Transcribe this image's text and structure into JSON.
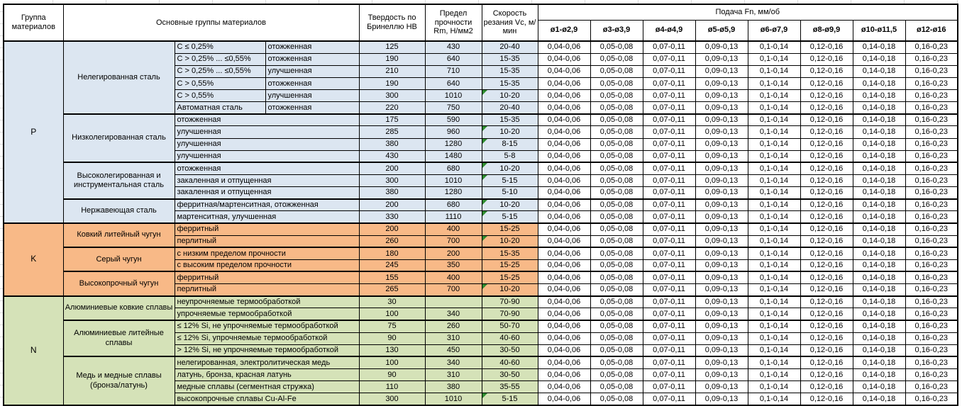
{
  "colors": {
    "group_p": "#dce6f1",
    "group_k": "#f8b987",
    "group_n": "#d5e2b8",
    "border": "#000000",
    "flag_green": "#2e8b2e"
  },
  "header": {
    "group": "Группа материалов",
    "main_groups": "Основные группы материалов",
    "hardness": "Твердость по Бринеллю HB",
    "strength": "Предел прочности Rm, Н/мм2",
    "speed": "Скорость резания Vc, м/мин",
    "feed_title": "Подача Fn, мм/об",
    "feed_cols": [
      "ø1-ø2,9",
      "ø3-ø3,9",
      "ø4-ø4,9",
      "ø5-ø5,9",
      "ø6-ø7,9",
      "ø8-ø9,9",
      "ø10-ø11,5",
      "ø12-ø16"
    ]
  },
  "table": {
    "feed_values": [
      "0,04-0,06",
      "0,05-0,08",
      "0,07-0,11",
      "0,09-0,13",
      "0,1-0,14",
      "0,12-0,16",
      "0,14-0,18",
      "0,16-0,23"
    ],
    "groups": [
      {
        "letter": "P",
        "color": "#dce6f1",
        "subgroups": [
          {
            "name": "Нелегированная сталь",
            "rows": [
              {
                "c1": "C ≤ 0,25%",
                "c2": "отожженная",
                "hb": "125",
                "rm": "430",
                "vc": "20-40",
                "flag": false
              },
              {
                "c1": "C > 0,25% ... ≤0,55%",
                "c2": "отожженная",
                "hb": "190",
                "rm": "640",
                "vc": "15-35",
                "flag": false
              },
              {
                "c1": "C > 0,25% ... ≤0,55%",
                "c2": "улучшенная",
                "hb": "210",
                "rm": "710",
                "vc": "15-35",
                "flag": false
              },
              {
                "c1": "C > 0,55%",
                "c2": "отожженная",
                "hb": "190",
                "rm": "640",
                "vc": "15-35",
                "flag": false
              },
              {
                "c1": "C > 0,55%",
                "c2": "улучшенная",
                "hb": "300",
                "rm": "1010",
                "vc": "10-20",
                "flag": true
              },
              {
                "c1": "Автоматная сталь",
                "c2": "отожженная",
                "hb": "220",
                "rm": "750",
                "vc": "20-40",
                "flag": false
              }
            ]
          },
          {
            "name": "Низколегированная сталь",
            "rows": [
              {
                "desc": "отожженная",
                "hb": "175",
                "rm": "590",
                "vc": "15-35",
                "flag": false
              },
              {
                "desc": "улучшенная",
                "hb": "285",
                "rm": "960",
                "vc": "10-20",
                "flag": true
              },
              {
                "desc": "улучшенная",
                "hb": "380",
                "rm": "1280",
                "vc": "8-15",
                "flag": true
              },
              {
                "desc": "улучшенная",
                "hb": "430",
                "rm": "1480",
                "vc": "5-8",
                "flag": false
              }
            ]
          },
          {
            "name": "Высоколегированная и инструментальная сталь",
            "rows": [
              {
                "desc": "отожженная",
                "hb": "200",
                "rm": "680",
                "vc": "10-20",
                "flag": true
              },
              {
                "desc": "закаленная и отпущенная",
                "hb": "300",
                "rm": "1010",
                "vc": "5-15",
                "flag": true
              },
              {
                "desc": "закаленная и отпущенная",
                "hb": "380",
                "rm": "1280",
                "vc": "5-10",
                "flag": false
              }
            ]
          },
          {
            "name": "Нержавеющая сталь",
            "rows": [
              {
                "desc": "ферритная/мартенситная, отожженная",
                "hb": "200",
                "rm": "680",
                "vc": "10-20",
                "flag": true
              },
              {
                "desc": "мартенситная, улучшенная",
                "hb": "330",
                "rm": "1110",
                "vc": "5-15",
                "flag": true
              }
            ]
          }
        ]
      },
      {
        "letter": "K",
        "color": "#f8b987",
        "subgroups": [
          {
            "name": "Ковкий литейный чугун",
            "rows": [
              {
                "desc": "ферритный",
                "hb": "200",
                "rm": "400",
                "vc": "15-25",
                "flag": false
              },
              {
                "desc": "перлитный",
                "hb": "260",
                "rm": "700",
                "vc": "10-20",
                "flag": true
              }
            ]
          },
          {
            "name": "Серый чугун",
            "rows": [
              {
                "desc": "с низким пределом прочности",
                "hb": "180",
                "rm": "200",
                "vc": "15-35",
                "flag": false
              },
              {
                "desc": "с высоким пределом прочности",
                "hb": "245",
                "rm": "350",
                "vc": "15-25",
                "flag": false
              }
            ]
          },
          {
            "name": "Высокопрочный чугун",
            "rows": [
              {
                "desc": "ферритный",
                "hb": "155",
                "rm": "400",
                "vc": "15-25",
                "flag": false
              },
              {
                "desc": "перлитный",
                "hb": "265",
                "rm": "700",
                "vc": "10-20",
                "flag": true
              }
            ]
          }
        ]
      },
      {
        "letter": "N",
        "color": "#d5e2b8",
        "subgroups": [
          {
            "name": "Алюминиевые ковкие сплавы",
            "rows": [
              {
                "desc": "неупрочняемые термообработкой",
                "hb": "30",
                "rm": "",
                "vc": "70-90",
                "flag": false
              },
              {
                "desc": "упрочняемые термообработкой",
                "hb": "100",
                "rm": "340",
                "vc": "70-90",
                "flag": false
              }
            ]
          },
          {
            "name": "Алюминиевые литейные сплавы",
            "rows": [
              {
                "desc": "≤ 12% Si, не упрочняемые термообработкой",
                "hb": "75",
                "rm": "260",
                "vc": "50-70",
                "flag": false
              },
              {
                "desc": "≤ 12% Si, упрочняемые термообработкой",
                "hb": "90",
                "rm": "310",
                "vc": "40-60",
                "flag": false
              },
              {
                "desc": "> 12% Si, не упрочняемые термообработкой",
                "hb": "130",
                "rm": "450",
                "vc": "30-50",
                "flag": false
              }
            ]
          },
          {
            "name": "Медь и медные сплавы (бронза/латунь)",
            "rows": [
              {
                "desc": "нелегированная, электролитическая медь",
                "hb": "100",
                "rm": "340",
                "vc": "40-60",
                "flag": false
              },
              {
                "desc": "латунь, бронза, красная латунь",
                "hb": "90",
                "rm": "310",
                "vc": "30-50",
                "flag": false
              },
              {
                "desc": "медные сплавы (сегментная стружка)",
                "hb": "110",
                "rm": "380",
                "vc": "35-55",
                "flag": false
              },
              {
                "desc": "высокопрочные сплавы Cu-Al-Fe",
                "hb": "300",
                "rm": "1010",
                "vc": "5-15",
                "flag": true
              }
            ]
          }
        ]
      }
    ]
  }
}
